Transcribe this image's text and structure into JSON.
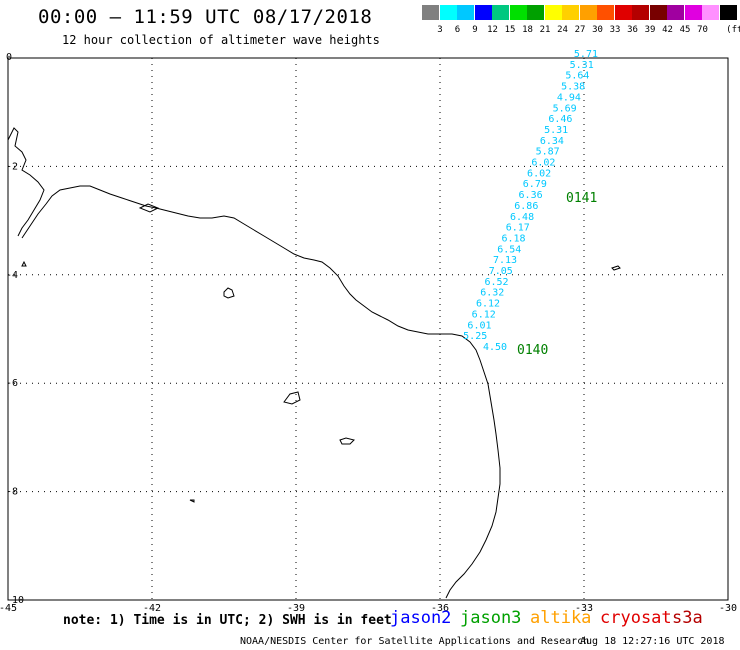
{
  "header": {
    "title": "00:00 – 11:59 UTC 08/17/2018",
    "subtitle": "12 hour collection of altimeter wave heights"
  },
  "legend": {
    "unit": "(ft)",
    "items": [
      {
        "label": "",
        "color": "#808080"
      },
      {
        "label": "3",
        "color": "#00ffff"
      },
      {
        "label": "6",
        "color": "#00c8ff"
      },
      {
        "label": "9",
        "color": "#0000ff"
      },
      {
        "label": "12",
        "color": "#00c880"
      },
      {
        "label": "15",
        "color": "#00e000"
      },
      {
        "label": "18",
        "color": "#00a000"
      },
      {
        "label": "21",
        "color": "#ffff00"
      },
      {
        "label": "24",
        "color": "#ffd000"
      },
      {
        "label": "27",
        "color": "#ffa000"
      },
      {
        "label": "30",
        "color": "#ff5000"
      },
      {
        "label": "33",
        "color": "#e00000"
      },
      {
        "label": "36",
        "color": "#b40000"
      },
      {
        "label": "39",
        "color": "#780000"
      },
      {
        "label": "42",
        "color": "#a000a0"
      },
      {
        "label": "45",
        "color": "#e000e0"
      },
      {
        "label": "70",
        "color": "#ff90ff"
      },
      {
        "label": "",
        "color": "#000000"
      }
    ]
  },
  "map": {
    "lon_ticks": [
      "-45",
      "-42",
      "-39",
      "-36",
      "-33",
      "-30"
    ],
    "lat_ticks": [
      "0",
      "-2",
      "-4",
      "-6",
      "-8",
      "-10"
    ],
    "pass_labels": [
      {
        "text": "0141",
        "color": "#008000"
      },
      {
        "text": "0140",
        "color": "#008000"
      }
    ],
    "wave_color": "#00c8ff",
    "wave_heights": [
      "5.71",
      "5.31",
      "5.64",
      "5.38",
      "4.94",
      "5.69",
      "6.46",
      "5.31",
      "6.34",
      "5.87",
      "6.02",
      "6.02",
      "6.79",
      "6.36",
      "6.86",
      "6.48",
      "6.17",
      "6.18",
      "6.54",
      "7.13",
      "7.05",
      "6.52",
      "6.32",
      "6.12",
      "6.12",
      "6.01",
      "5.25",
      "4.50"
    ]
  },
  "footer": {
    "note": "note: 1) Time is in UTC; 2) SWH is in feet",
    "satellites": [
      {
        "name": "jason2",
        "color": "#0000ff"
      },
      {
        "name": "jason3",
        "color": "#00a000"
      },
      {
        "name": "altika",
        "color": "#ffa000"
      },
      {
        "name": "cryosat",
        "color": "#e00000"
      },
      {
        "name": "s3a",
        "color": "#b40000"
      }
    ],
    "credit": "NOAA/NESDIS Center for Satellite Applications and Research",
    "timestamp": "Aug 18 12:27:16 UTC 2018"
  }
}
